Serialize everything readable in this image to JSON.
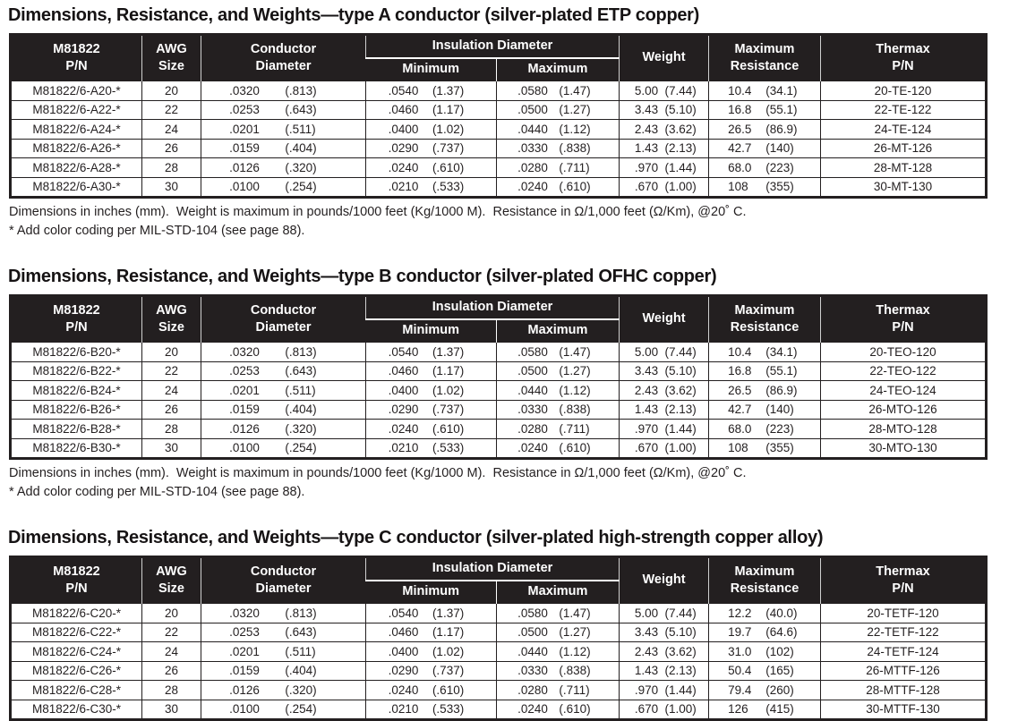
{
  "headers": {
    "pn_line1": "M81822",
    "pn_line2": "P/N",
    "awg_line1": "AWG",
    "awg_line2": "Size",
    "cond_line1": "Conductor",
    "cond_line2": "Diameter",
    "insulation_group": "Insulation Diameter",
    "ins_min": "Minimum",
    "ins_max": "Maximum",
    "weight": "Weight",
    "res_line1": "Maximum",
    "res_line2": "Resistance",
    "thermax_line1": "Thermax",
    "thermax_line2": "P/N"
  },
  "footnotes": {
    "dimensions": "Dimensions in inches (mm).  Weight is maximum in pounds/1000 feet (Kg/1000 M).  Resistance in Ω/1,000 feet (Ω/Km), @20˚ C.",
    "color_coding": "* Add color coding per MIL-STD-104 (see page 88)."
  },
  "colors": {
    "header_bg": "#231f20",
    "header_text": "#ffffff",
    "body_text": "#231f20",
    "border": "#231f20"
  },
  "tables": [
    {
      "title": "Dimensions, Resistance, and Weights—type A conductor (silver-plated ETP copper)",
      "rows": [
        {
          "pn": "M81822/6-A20-*",
          "awg": "20",
          "cond": [
            ".0320",
            "(.813)"
          ],
          "ins_min": [
            ".0540",
            "(1.37)"
          ],
          "ins_max": [
            ".0580",
            "(1.47)"
          ],
          "weight": [
            "5.00",
            "(7.44)"
          ],
          "res": [
            "10.4",
            "(34.1)"
          ],
          "thermax": "20-TE-120"
        },
        {
          "pn": "M81822/6-A22-*",
          "awg": "22",
          "cond": [
            ".0253",
            "(.643)"
          ],
          "ins_min": [
            ".0460",
            "(1.17)"
          ],
          "ins_max": [
            ".0500",
            "(1.27)"
          ],
          "weight": [
            "3.43",
            "(5.10)"
          ],
          "res": [
            "16.8",
            "(55.1)"
          ],
          "thermax": "22-TE-122"
        },
        {
          "pn": "M81822/6-A24-*",
          "awg": "24",
          "cond": [
            ".0201",
            "(.511)"
          ],
          "ins_min": [
            ".0400",
            "(1.02)"
          ],
          "ins_max": [
            ".0440",
            "(1.12)"
          ],
          "weight": [
            "2.43",
            "(3.62)"
          ],
          "res": [
            "26.5",
            "(86.9)"
          ],
          "thermax": "24-TE-124"
        },
        {
          "pn": "M81822/6-A26-*",
          "awg": "26",
          "cond": [
            ".0159",
            "(.404)"
          ],
          "ins_min": [
            ".0290",
            "(.737)"
          ],
          "ins_max": [
            ".0330",
            "(.838)"
          ],
          "weight": [
            "1.43",
            "(2.13)"
          ],
          "res": [
            "42.7",
            "(140)"
          ],
          "thermax": "26-MT-126"
        },
        {
          "pn": "M81822/6-A28-*",
          "awg": "28",
          "cond": [
            ".0126",
            "(.320)"
          ],
          "ins_min": [
            ".0240",
            "(.610)"
          ],
          "ins_max": [
            ".0280",
            "(.711)"
          ],
          "weight": [
            ".970",
            "(1.44)"
          ],
          "res": [
            "68.0",
            "(223)"
          ],
          "thermax": "28-MT-128"
        },
        {
          "pn": "M81822/6-A30-*",
          "awg": "30",
          "cond": [
            ".0100",
            "(.254)"
          ],
          "ins_min": [
            ".0210",
            "(.533)"
          ],
          "ins_max": [
            ".0240",
            "(.610)"
          ],
          "weight": [
            ".670",
            "(1.00)"
          ],
          "res": [
            "108",
            "(355)"
          ],
          "thermax": "30-MT-130"
        }
      ]
    },
    {
      "title": "Dimensions, Resistance, and Weights—type B conductor (silver-plated OFHC copper)",
      "rows": [
        {
          "pn": "M81822/6-B20-*",
          "awg": "20",
          "cond": [
            ".0320",
            "(.813)"
          ],
          "ins_min": [
            ".0540",
            "(1.37)"
          ],
          "ins_max": [
            ".0580",
            "(1.47)"
          ],
          "weight": [
            "5.00",
            "(7.44)"
          ],
          "res": [
            "10.4",
            "(34.1)"
          ],
          "thermax": "20-TEO-120"
        },
        {
          "pn": "M81822/6-B22-*",
          "awg": "22",
          "cond": [
            ".0253",
            "(.643)"
          ],
          "ins_min": [
            ".0460",
            "(1.17)"
          ],
          "ins_max": [
            ".0500",
            "(1.27)"
          ],
          "weight": [
            "3.43",
            "(5.10)"
          ],
          "res": [
            "16.8",
            "(55.1)"
          ],
          "thermax": "22-TEO-122"
        },
        {
          "pn": "M81822/6-B24-*",
          "awg": "24",
          "cond": [
            ".0201",
            "(.511)"
          ],
          "ins_min": [
            ".0400",
            "(1.02)"
          ],
          "ins_max": [
            ".0440",
            "(1.12)"
          ],
          "weight": [
            "2.43",
            "(3.62)"
          ],
          "res": [
            "26.5",
            "(86.9)"
          ],
          "thermax": "24-TEO-124"
        },
        {
          "pn": "M81822/6-B26-*",
          "awg": "26",
          "cond": [
            ".0159",
            "(.404)"
          ],
          "ins_min": [
            ".0290",
            "(.737)"
          ],
          "ins_max": [
            ".0330",
            "(.838)"
          ],
          "weight": [
            "1.43",
            "(2.13)"
          ],
          "res": [
            "42.7",
            "(140)"
          ],
          "thermax": "26-MTO-126"
        },
        {
          "pn": "M81822/6-B28-*",
          "awg": "28",
          "cond": [
            ".0126",
            "(.320)"
          ],
          "ins_min": [
            ".0240",
            "(.610)"
          ],
          "ins_max": [
            ".0280",
            "(.711)"
          ],
          "weight": [
            ".970",
            "(1.44)"
          ],
          "res": [
            "68.0",
            "(223)"
          ],
          "thermax": "28-MTO-128"
        },
        {
          "pn": "M81822/6-B30-*",
          "awg": "30",
          "cond": [
            ".0100",
            "(.254)"
          ],
          "ins_min": [
            ".0210",
            "(.533)"
          ],
          "ins_max": [
            ".0240",
            "(.610)"
          ],
          "weight": [
            ".670",
            "(1.00)"
          ],
          "res": [
            "108",
            "(355)"
          ],
          "thermax": "30-MTO-130"
        }
      ]
    },
    {
      "title": "Dimensions, Resistance, and Weights—type C conductor (silver-plated high-strength copper alloy)",
      "rows": [
        {
          "pn": "M81822/6-C20-*",
          "awg": "20",
          "cond": [
            ".0320",
            "(.813)"
          ],
          "ins_min": [
            ".0540",
            "(1.37)"
          ],
          "ins_max": [
            ".0580",
            "(1.47)"
          ],
          "weight": [
            "5.00",
            "(7.44)"
          ],
          "res": [
            "12.2",
            "(40.0)"
          ],
          "thermax": "20-TETF-120"
        },
        {
          "pn": "M81822/6-C22-*",
          "awg": "22",
          "cond": [
            ".0253",
            "(.643)"
          ],
          "ins_min": [
            ".0460",
            "(1.17)"
          ],
          "ins_max": [
            ".0500",
            "(1.27)"
          ],
          "weight": [
            "3.43",
            "(5.10)"
          ],
          "res": [
            "19.7",
            "(64.6)"
          ],
          "thermax": "22-TETF-122"
        },
        {
          "pn": "M81822/6-C24-*",
          "awg": "24",
          "cond": [
            ".0201",
            "(.511)"
          ],
          "ins_min": [
            ".0400",
            "(1.02)"
          ],
          "ins_max": [
            ".0440",
            "(1.12)"
          ],
          "weight": [
            "2.43",
            "(3.62)"
          ],
          "res": [
            "31.0",
            "(102)"
          ],
          "thermax": "24-TETF-124"
        },
        {
          "pn": "M81822/6-C26-*",
          "awg": "26",
          "cond": [
            ".0159",
            "(.404)"
          ],
          "ins_min": [
            ".0290",
            "(.737)"
          ],
          "ins_max": [
            ".0330",
            "(.838)"
          ],
          "weight": [
            "1.43",
            "(2.13)"
          ],
          "res": [
            "50.4",
            "(165)"
          ],
          "thermax": "26-MTTF-126"
        },
        {
          "pn": "M81822/6-C28-*",
          "awg": "28",
          "cond": [
            ".0126",
            "(.320)"
          ],
          "ins_min": [
            ".0240",
            "(.610)"
          ],
          "ins_max": [
            ".0280",
            "(.711)"
          ],
          "weight": [
            ".970",
            "(1.44)"
          ],
          "res": [
            "79.4",
            "(260)"
          ],
          "thermax": "28-MTTF-128"
        },
        {
          "pn": "M81822/6-C30-*",
          "awg": "30",
          "cond": [
            ".0100",
            "(.254)"
          ],
          "ins_min": [
            ".0210",
            "(.533)"
          ],
          "ins_max": [
            ".0240",
            "(.610)"
          ],
          "weight": [
            ".670",
            "(1.00)"
          ],
          "res": [
            "126",
            "(415)"
          ],
          "thermax": "30-MTTF-130"
        }
      ]
    }
  ]
}
